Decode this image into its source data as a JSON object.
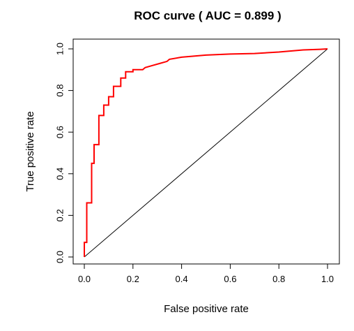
{
  "chart_data": {
    "type": "line",
    "title": "ROC curve ( AUC =  0.899 )",
    "xlabel": "False positive rate",
    "ylabel": "True positive rate",
    "xlim": [
      0,
      1
    ],
    "ylim": [
      0,
      1
    ],
    "x_ticks": [
      0,
      0.2,
      0.4,
      0.6,
      0.8,
      1
    ],
    "y_ticks": [
      0,
      0.2,
      0.4,
      0.6,
      0.8,
      1
    ],
    "x_tick_labels": [
      "0.0",
      "0.2",
      "0.4",
      "0.6",
      "0.8",
      "1.0"
    ],
    "y_tick_labels": [
      "0.0",
      "0.2",
      "0.4",
      "0.6",
      "0.8",
      "1.0"
    ],
    "grid": false,
    "colors": {
      "roc": "#ff0000",
      "reference": "#000000",
      "frame": "#000000"
    },
    "series": [
      {
        "points": [
          [
            0,
            0
          ],
          [
            0,
            0.07
          ],
          [
            0.01,
            0.07
          ],
          [
            0.01,
            0.26
          ],
          [
            0.03,
            0.26
          ],
          [
            0.03,
            0.45
          ],
          [
            0.04,
            0.45
          ],
          [
            0.04,
            0.54
          ],
          [
            0.06,
            0.54
          ],
          [
            0.06,
            0.68
          ],
          [
            0.08,
            0.68
          ],
          [
            0.08,
            0.73
          ],
          [
            0.1,
            0.73
          ],
          [
            0.1,
            0.77
          ],
          [
            0.12,
            0.77
          ],
          [
            0.12,
            0.82
          ],
          [
            0.15,
            0.82
          ],
          [
            0.15,
            0.86
          ],
          [
            0.17,
            0.86
          ],
          [
            0.17,
            0.89
          ],
          [
            0.2,
            0.89
          ],
          [
            0.2,
            0.9
          ],
          [
            0.24,
            0.9
          ],
          [
            0.25,
            0.91
          ],
          [
            0.28,
            0.92
          ],
          [
            0.31,
            0.93
          ],
          [
            0.34,
            0.94
          ],
          [
            0.35,
            0.95
          ],
          [
            0.4,
            0.96
          ],
          [
            0.45,
            0.965
          ],
          [
            0.5,
            0.97
          ],
          [
            0.6,
            0.975
          ],
          [
            0.7,
            0.978
          ],
          [
            0.8,
            0.985
          ],
          [
            0.85,
            0.99
          ],
          [
            0.9,
            0.995
          ],
          [
            0.97,
            0.998
          ],
          [
            1,
            1
          ]
        ]
      },
      {
        "points": [
          [
            0,
            0
          ],
          [
            1,
            1
          ]
        ]
      }
    ]
  }
}
